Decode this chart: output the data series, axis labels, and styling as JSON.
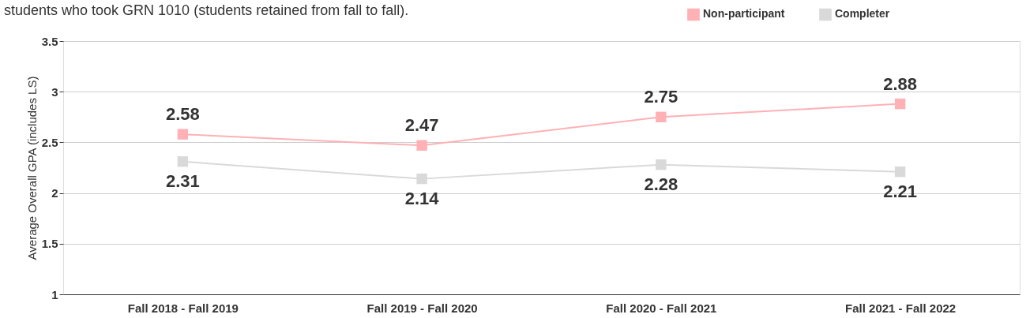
{
  "chart_data": {
    "type": "line",
    "title": "students who took GRN 1010 (students retained from fall to fall).",
    "ylabel": "Average Overall GPA (includes LS)",
    "categories": [
      "Fall 2018 - Fall 2019",
      "Fall 2019 - Fall 2020",
      "Fall 2020 - Fall 2021",
      "Fall 2021 - Fall 2022"
    ],
    "series": [
      {
        "name": "Non-participant",
        "color": "#ffb1b5",
        "values": [
          2.58,
          2.47,
          2.75,
          2.88
        ]
      },
      {
        "name": "Completer",
        "color": "#d9d9d9",
        "values": [
          2.31,
          2.14,
          2.28,
          2.21
        ]
      }
    ],
    "ylim": [
      1,
      3.5
    ],
    "yticks": [
      1,
      1.5,
      2,
      2.5,
      3,
      3.5
    ],
    "grid": "y",
    "legend": "top right",
    "marker": "square",
    "line_style": "solid",
    "data_labels": true
  }
}
